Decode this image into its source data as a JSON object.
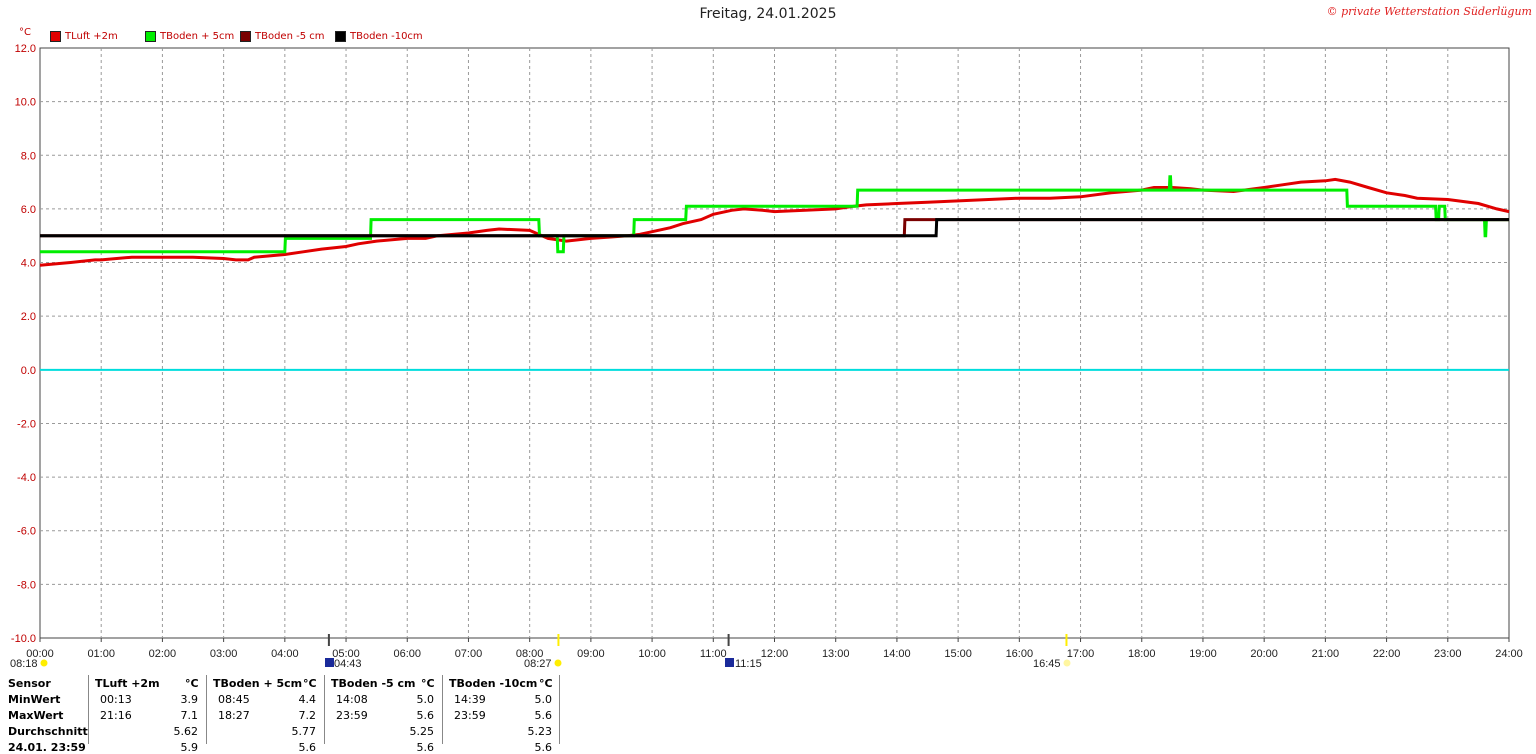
{
  "title": "Freitag, 24.01.2025",
  "copyright": "© private Wetterstation Süderlügum",
  "unit_label": "°C",
  "colors": {
    "tluft": "#e00000",
    "tboden5plus": "#00ee00",
    "tboden5minus": "#7a0000",
    "tboden10": "#000000",
    "zero_line": "#00dddd",
    "grid": "#9a9a9a",
    "sun": "#ffee00"
  },
  "legend": [
    {
      "label": "TLuft +2m",
      "color": "#e00000"
    },
    {
      "label": "TBoden + 5cm",
      "color": "#00ee00"
    },
    {
      "label": "TBoden -5 cm",
      "color": "#7a0000"
    },
    {
      "label": "TBoden -10cm",
      "color": "#000000"
    }
  ],
  "chart_data": {
    "type": "line",
    "title": "Freitag, 24.01.2025",
    "ylabel": "°C",
    "ylim": [
      -10,
      12
    ],
    "xlim": [
      0,
      24
    ],
    "yticks": [
      "12.0",
      "10.0",
      "8.0",
      "6.0",
      "4.0",
      "2.0",
      "0.0",
      "-2.0",
      "-4.0",
      "-6.0",
      "-8.0",
      "-10.0"
    ],
    "xticks": [
      "00:00",
      "01:00",
      "02:00",
      "03:00",
      "04:00",
      "05:00",
      "06:00",
      "07:00",
      "08:00",
      "09:00",
      "10:00",
      "11:00",
      "12:00",
      "13:00",
      "14:00",
      "15:00",
      "16:00",
      "17:00",
      "18:00",
      "19:00",
      "20:00",
      "21:00",
      "22:00",
      "23:00",
      "24:00"
    ],
    "grid": true,
    "legend_position": "top-left",
    "series": [
      {
        "name": "TLuft +2m",
        "color": "#e00000",
        "x": [
          0,
          0.25,
          0.5,
          0.9,
          1.0,
          1.5,
          2.0,
          2.5,
          3.0,
          3.2,
          3.4,
          3.5,
          4.0,
          4.3,
          4.6,
          5.0,
          5.2,
          5.5,
          6.0,
          6.3,
          6.5,
          7.0,
          7.3,
          7.5,
          8.0,
          8.3,
          8.6,
          8.8,
          9.0,
          9.3,
          9.6,
          9.8,
          10.0,
          10.3,
          10.5,
          10.8,
          11.0,
          11.3,
          11.5,
          11.8,
          12.0,
          12.5,
          13.0,
          13.3,
          13.5,
          14.0,
          14.5,
          15.0,
          15.5,
          16.0,
          16.5,
          17.0,
          17.5,
          18.0,
          18.2,
          18.5,
          18.8,
          19.0,
          19.5,
          20.0,
          20.3,
          20.6,
          21.0,
          21.16,
          21.4,
          21.7,
          22.0,
          22.3,
          22.5,
          23.0,
          23.5,
          23.8,
          24.0
        ],
        "y": [
          3.9,
          3.95,
          4.0,
          4.1,
          4.1,
          4.2,
          4.2,
          4.2,
          4.15,
          4.1,
          4.1,
          4.2,
          4.3,
          4.4,
          4.5,
          4.6,
          4.7,
          4.8,
          4.9,
          4.9,
          5.0,
          5.1,
          5.2,
          5.25,
          5.2,
          4.9,
          4.8,
          4.85,
          4.9,
          4.95,
          5.0,
          5.05,
          5.15,
          5.3,
          5.45,
          5.6,
          5.8,
          5.95,
          6.0,
          5.95,
          5.9,
          5.95,
          6.0,
          6.1,
          6.15,
          6.2,
          6.25,
          6.3,
          6.35,
          6.4,
          6.4,
          6.45,
          6.6,
          6.7,
          6.8,
          6.8,
          6.75,
          6.7,
          6.65,
          6.8,
          6.9,
          7.0,
          7.05,
          7.1,
          7.0,
          6.8,
          6.6,
          6.5,
          6.4,
          6.35,
          6.2,
          6.0,
          5.9
        ]
      },
      {
        "name": "TBoden + 5cm",
        "color": "#00ee00",
        "x": [
          0,
          4.0,
          4.01,
          5.4,
          5.41,
          8.15,
          8.16,
          8.45,
          8.46,
          8.55,
          8.56,
          9.7,
          9.71,
          10.55,
          10.56,
          13.35,
          13.36,
          18.45,
          18.46,
          18.47,
          18.48,
          21.35,
          21.36,
          22.8,
          22.81,
          22.85,
          22.86,
          22.95,
          22.96,
          23.6,
          23.61,
          23.62,
          23.63,
          24.0
        ],
        "y": [
          4.4,
          4.4,
          4.9,
          4.9,
          5.6,
          5.6,
          5.0,
          5.0,
          4.4,
          4.4,
          5.0,
          5.0,
          5.6,
          5.6,
          6.1,
          6.1,
          6.7,
          6.7,
          7.2,
          7.2,
          6.7,
          6.7,
          6.1,
          6.1,
          5.6,
          5.6,
          6.1,
          6.1,
          5.6,
          5.6,
          5.0,
          5.0,
          5.6,
          5.6
        ]
      },
      {
        "name": "TBoden -5 cm",
        "color": "#7a0000",
        "x": [
          0,
          14.12,
          14.13,
          24.0
        ],
        "y": [
          5.0,
          5.0,
          5.6,
          5.6
        ]
      },
      {
        "name": "TBoden -10cm",
        "color": "#000000",
        "x": [
          0,
          14.64,
          14.65,
          24.0
        ],
        "y": [
          5.0,
          5.0,
          5.6,
          5.6
        ]
      }
    ]
  },
  "sun_markers": {
    "sunrise": "08:18",
    "sunset": "16:45",
    "moonrise": "04:43",
    "moonset": "11:15",
    "noon": "08:27",
    "time_values": [
      8.47,
      16.77,
      4.72,
      11.25
    ]
  },
  "stats": {
    "header": [
      "Sensor",
      "TLuft +2m",
      "°C",
      "TBoden + 5cm",
      "°C",
      "TBoden -5 cm",
      "°C",
      "TBoden -10cm",
      "°C"
    ],
    "rows": [
      {
        "label": "MinWert",
        "values": [
          [
            "00:13",
            "3.9"
          ],
          [
            "08:45",
            "4.4"
          ],
          [
            "14:08",
            "5.0"
          ],
          [
            "14:39",
            "5.0"
          ]
        ]
      },
      {
        "label": "MaxWert",
        "values": [
          [
            "21:16",
            "7.1"
          ],
          [
            "18:27",
            "7.2"
          ],
          [
            "23:59",
            "5.6"
          ],
          [
            "23:59",
            "5.6"
          ]
        ]
      },
      {
        "label": "Durchschnitt",
        "values": [
          [
            "",
            "5.62"
          ],
          [
            "",
            "5.77"
          ],
          [
            "",
            "5.25"
          ],
          [
            "",
            "5.23"
          ]
        ]
      },
      {
        "label": "24.01. 23:59",
        "values": [
          [
            "",
            "5.9"
          ],
          [
            "",
            "5.6"
          ],
          [
            "",
            "5.6"
          ],
          [
            "",
            "5.6"
          ]
        ]
      }
    ]
  }
}
